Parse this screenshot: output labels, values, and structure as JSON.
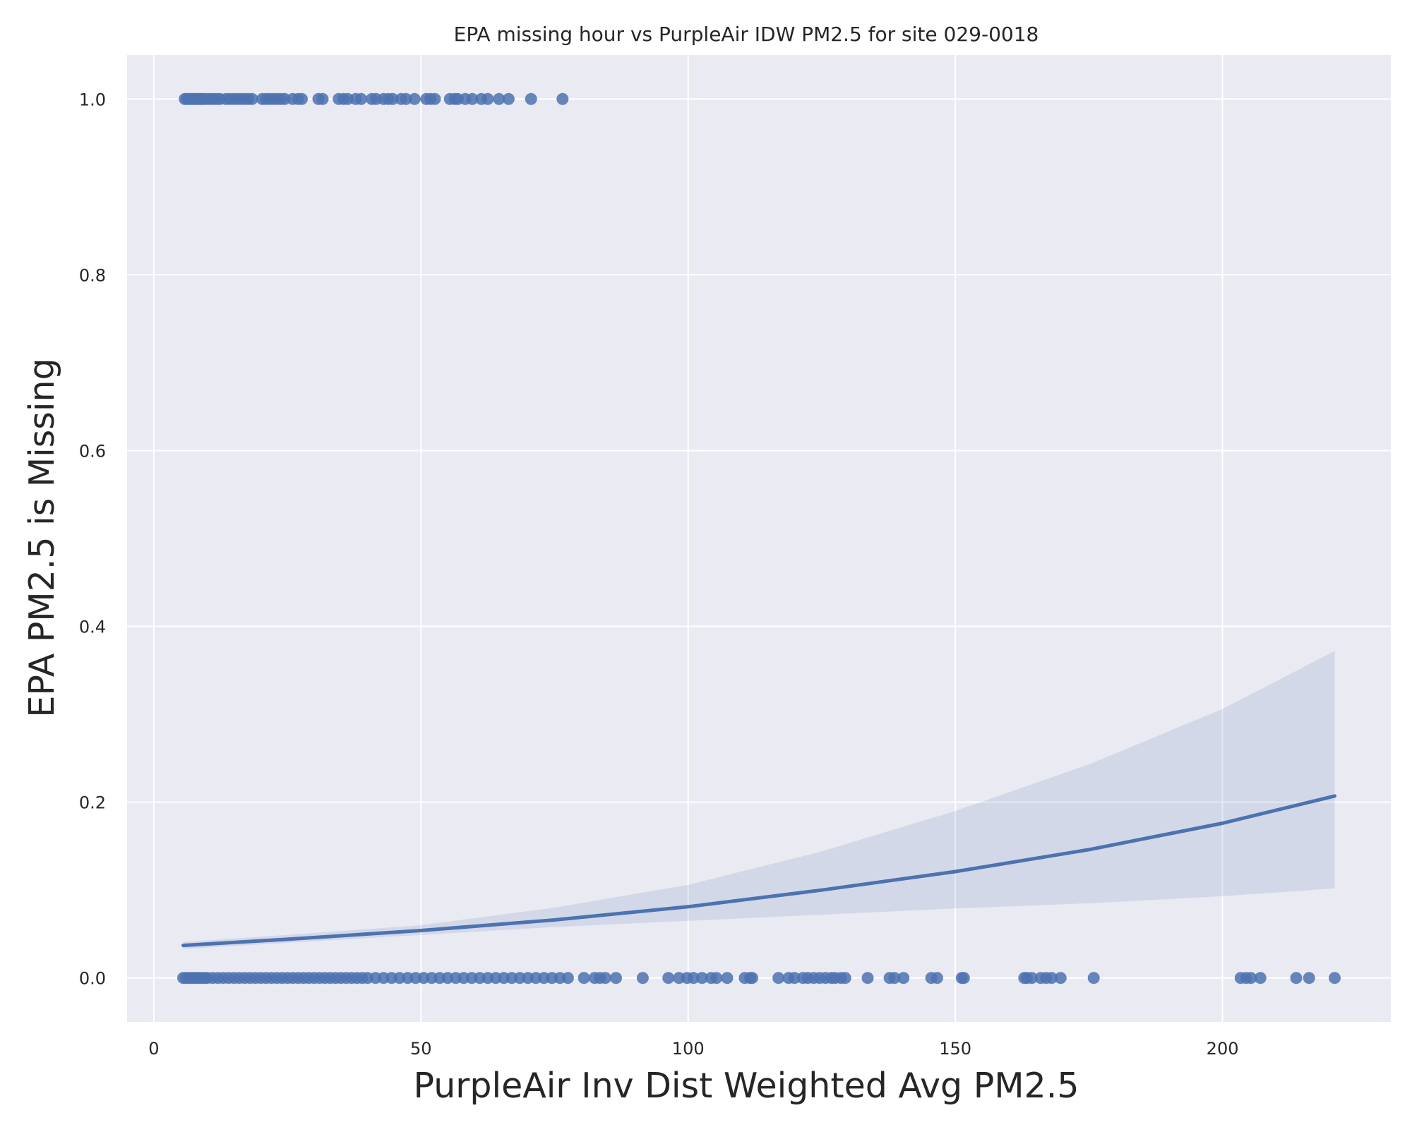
{
  "chart_data": {
    "type": "scatter",
    "title": "EPA missing hour vs PurpleAir IDW PM2.5 for site 029-0018",
    "xlabel": "PurpleAir Inv Dist Weighted Avg PM2.5",
    "ylabel": "EPA PM2.5 is Missing",
    "xlim": [
      -5,
      231.5
    ],
    "ylim": [
      -0.05,
      1.05
    ],
    "xticks": [
      0,
      50,
      100,
      150,
      200
    ],
    "xtick_labels": [
      "0",
      "50",
      "100",
      "150",
      "200"
    ],
    "yticks": [
      0.0,
      0.2,
      0.4,
      0.6,
      0.8,
      1.0
    ],
    "ytick_labels": [
      "0.0",
      "0.2",
      "0.4",
      "0.6",
      "0.8",
      "1.0"
    ],
    "grid": true,
    "legend": "none",
    "colors": {
      "background": "#eaeaf2",
      "grid": "#ffffff",
      "points": "#4c72b0",
      "fit_line": "#4c72b0",
      "ci_band": "#4c72b0"
    },
    "series": [
      {
        "kind": "points",
        "y": 1.0,
        "x": [
          5.8,
          6.2,
          6.6,
          7.0,
          7.4,
          7.8,
          8.2,
          8.6,
          9.0,
          9.4,
          10.0,
          10.6,
          11.2,
          11.8,
          12.4,
          13.5,
          14.2,
          14.9,
          15.6,
          16.3,
          17.0,
          17.7,
          18.4,
          20.3,
          21.0,
          21.7,
          22.4,
          23.1,
          23.8,
          24.5,
          26.0,
          27.0,
          27.7,
          30.8,
          31.6,
          34.6,
          35.5,
          36.3,
          37.8,
          38.8,
          40.8,
          41.6,
          43.0,
          43.9,
          44.7,
          46.3,
          47.2,
          48.8,
          51.0,
          51.8,
          52.6,
          55.4,
          56.3,
          56.9,
          58.3,
          59.6,
          61.3,
          62.5,
          64.6,
          66.4,
          70.6,
          76.5
        ]
      },
      {
        "kind": "points",
        "y": 0.0,
        "x": [
          5.5,
          6.0,
          6.5,
          7.0,
          7.5,
          8.0,
          8.5,
          9.0,
          9.5,
          10.0,
          11.0,
          12.0,
          13.0,
          14.0,
          15.0,
          16.0,
          17.0,
          18.0,
          19.0,
          20.0,
          21.0,
          22.0,
          23.0,
          24.0,
          25.0,
          26.0,
          27.0,
          28.0,
          29.0,
          30.0,
          31.0,
          32.0,
          33.0,
          34.0,
          35.0,
          36.0,
          37.0,
          38.0,
          39.0,
          40.0,
          41.5,
          43.0,
          44.5,
          46.0,
          47.5,
          49.0,
          50.5,
          52.0,
          53.5,
          55.0,
          56.5,
          58.0,
          59.5,
          61.0,
          62.5,
          64.0,
          65.5,
          67.0,
          68.5,
          70.0,
          71.5,
          73.0,
          74.5,
          76.0,
          77.5,
          80.5,
          82.5,
          83.5,
          84.5,
          86.5,
          91.5,
          96.3,
          98.3,
          99.8,
          101.0,
          102.6,
          104.3,
          105.3,
          107.3,
          110.6,
          111.6,
          112.0,
          116.9,
          118.8,
          119.9,
          121.5,
          122.4,
          123.5,
          124.6,
          125.7,
          126.8,
          127.5,
          128.6,
          129.4,
          133.6,
          137.7,
          138.6,
          140.3,
          145.5,
          146.6,
          151.2,
          151.6,
          162.9,
          163.4,
          164.3,
          166.0,
          167.0,
          168.0,
          169.7,
          175.9,
          203.4,
          204.4,
          205.3,
          207.1,
          213.8,
          216.2,
          221.0
        ]
      }
    ],
    "fit": {
      "kind": "logistic regression fit",
      "x": [
        5.5,
        25,
        50,
        75,
        100,
        125,
        150,
        175,
        200,
        221
      ],
      "y": [
        0.037,
        0.044,
        0.054,
        0.066,
        0.081,
        0.1,
        0.121,
        0.146,
        0.176,
        0.207
      ],
      "ci_lower": [
        0.033,
        0.04,
        0.049,
        0.058,
        0.065,
        0.072,
        0.079,
        0.085,
        0.093,
        0.102
      ],
      "ci_upper": [
        0.041,
        0.049,
        0.06,
        0.08,
        0.106,
        0.144,
        0.19,
        0.243,
        0.306,
        0.372
      ]
    }
  }
}
